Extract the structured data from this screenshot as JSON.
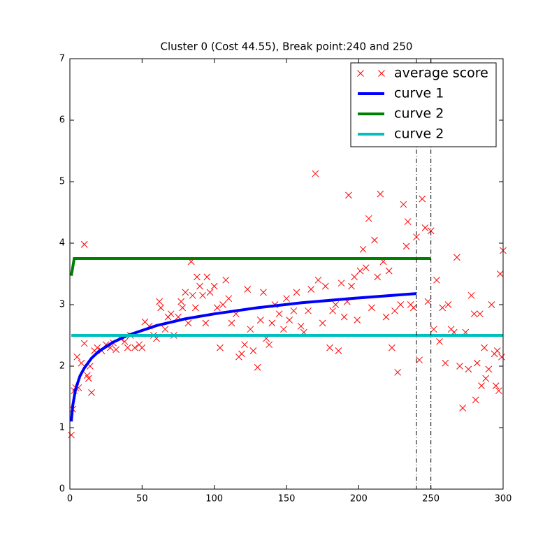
{
  "chart_data": {
    "type": "scatter-lines",
    "title": "Cluster 0 (Cost 44.55), Break point:240 and 250",
    "xlim": [
      0,
      300
    ],
    "ylim": [
      0,
      7
    ],
    "xticks": [
      0,
      50,
      100,
      150,
      200,
      250,
      300
    ],
    "yticks": [
      0,
      1,
      2,
      3,
      4,
      5,
      6,
      7
    ],
    "vlines": [
      240,
      250
    ],
    "vline_color": "#000000",
    "legend": "upper right",
    "series": [
      {
        "name": "average score",
        "color": "#ff0000",
        "style": "x",
        "x": [
          1,
          2,
          3,
          4,
          5,
          6,
          8,
          10,
          10,
          12,
          13,
          14,
          15,
          17,
          19,
          22,
          25,
          28,
          30,
          32,
          35,
          38,
          40,
          42,
          45,
          48,
          50,
          52,
          55,
          58,
          60,
          62,
          63,
          66,
          68,
          70,
          72,
          75,
          77,
          78,
          80,
          82,
          84,
          85,
          87,
          88,
          90,
          92,
          94,
          95,
          97,
          100,
          102,
          104,
          106,
          108,
          110,
          112,
          115,
          117,
          119,
          121,
          123,
          125,
          127,
          130,
          132,
          134,
          136,
          138,
          140,
          142,
          145,
          148,
          150,
          152,
          155,
          157,
          160,
          162,
          165,
          167,
          170,
          172,
          175,
          177,
          180,
          182,
          184,
          186,
          188,
          190,
          192,
          193,
          195,
          197,
          199,
          201,
          203,
          205,
          207,
          209,
          211,
          213,
          215,
          217,
          219,
          221,
          223,
          225,
          227,
          229,
          231,
          233,
          234,
          236,
          238,
          240,
          242,
          244,
          246,
          248,
          250,
          252,
          254,
          256,
          258,
          260,
          262,
          264,
          266,
          268,
          270,
          272,
          274,
          276,
          278,
          280,
          281,
          282,
          284,
          285,
          287,
          288,
          290,
          292,
          294,
          295,
          296,
          297,
          298,
          299,
          300
        ],
        "values": [
          0.88,
          1.3,
          1.6,
          1.65,
          2.15,
          1.65,
          2.05,
          2.37,
          3.98,
          1.85,
          1.8,
          2.0,
          1.57,
          2.25,
          2.3,
          2.25,
          2.35,
          2.3,
          2.38,
          2.27,
          2.45,
          2.4,
          2.3,
          2.5,
          2.3,
          2.35,
          2.3,
          2.72,
          2.65,
          2.5,
          2.45,
          3.05,
          2.95,
          2.6,
          2.8,
          2.85,
          2.5,
          2.8,
          3.05,
          2.95,
          3.2,
          2.7,
          3.7,
          3.15,
          2.95,
          3.45,
          3.3,
          3.15,
          2.7,
          3.45,
          3.2,
          3.3,
          2.95,
          2.3,
          3.0,
          3.4,
          3.1,
          2.7,
          2.85,
          2.15,
          2.2,
          2.35,
          3.25,
          2.6,
          2.25,
          1.98,
          2.75,
          3.2,
          2.45,
          2.35,
          2.7,
          3.0,
          2.85,
          2.6,
          3.1,
          2.75,
          2.9,
          3.2,
          2.65,
          2.55,
          2.9,
          3.25,
          5.13,
          3.4,
          2.7,
          3.3,
          2.3,
          2.9,
          3.0,
          2.25,
          3.35,
          2.8,
          3.05,
          4.78,
          3.3,
          3.45,
          2.75,
          3.55,
          3.9,
          3.6,
          4.4,
          2.95,
          4.05,
          3.45,
          4.8,
          3.7,
          2.8,
          3.55,
          2.3,
          2.9,
          1.9,
          3.0,
          4.63,
          3.95,
          4.35,
          3.0,
          2.95,
          4.1,
          2.1,
          4.72,
          4.25,
          3.05,
          4.2,
          2.6,
          3.4,
          2.4,
          2.95,
          2.05,
          3.0,
          2.6,
          2.55,
          3.77,
          2.0,
          1.32,
          2.55,
          1.95,
          3.15,
          2.85,
          1.45,
          2.05,
          2.85,
          1.68,
          2.3,
          1.8,
          1.95,
          3.0,
          2.2,
          1.68,
          2.25,
          1.6,
          3.5,
          2.15,
          3.88
        ]
      },
      {
        "name": "curve 1",
        "color": "#0000ff",
        "style": "line",
        "x": [
          1,
          2,
          4,
          7,
          10,
          15,
          20,
          30,
          40,
          60,
          80,
          100,
          130,
          160,
          200,
          240
        ],
        "values": [
          1.1,
          1.36,
          1.63,
          1.84,
          1.97,
          2.13,
          2.24,
          2.39,
          2.5,
          2.66,
          2.77,
          2.85,
          2.95,
          3.03,
          3.11,
          3.18
        ]
      },
      {
        "name": "curve 2",
        "color": "#008000",
        "style": "line",
        "x": [
          1,
          3,
          250
        ],
        "values": [
          3.47,
          3.75,
          3.75
        ]
      },
      {
        "name": "curve 2",
        "color": "#00bfbf",
        "style": "line",
        "x": [
          1,
          300
        ],
        "values": [
          2.5,
          2.5
        ]
      }
    ]
  }
}
